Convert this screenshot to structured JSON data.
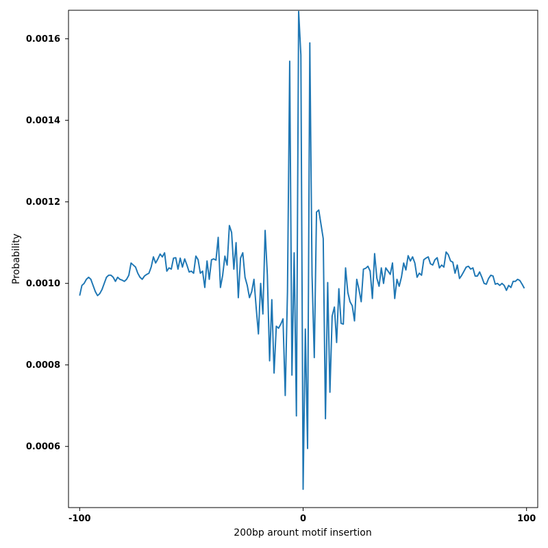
{
  "chart_data": {
    "type": "line",
    "title": "",
    "xlabel": "200bp arount motif insertion",
    "ylabel": "Probability",
    "xlim": [
      -105,
      105
    ],
    "ylim": [
      0.00045,
      0.00167
    ],
    "x_ticks": [
      -100,
      0,
      100
    ],
    "x_tick_labels": [
      "-100",
      "0",
      "100"
    ],
    "y_ticks": [
      0.0006,
      0.0008,
      0.001,
      0.0012,
      0.0014,
      0.0016
    ],
    "y_tick_labels": [
      "0.0006",
      "0.0008",
      "0.0010",
      "0.0012",
      "0.0014",
      "0.0016"
    ],
    "grid": false,
    "series": [
      {
        "color": "#1f77b4",
        "x": [
          -100,
          -99,
          -98,
          -97,
          -96,
          -95,
          -94,
          -93,
          -92,
          -91,
          -90,
          -89,
          -88,
          -87,
          -86,
          -85,
          -84,
          -83,
          -82,
          -81,
          -80,
          -79,
          -78,
          -77,
          -76,
          -75,
          -74,
          -73,
          -72,
          -71,
          -70,
          -69,
          -68,
          -67,
          -66,
          -65,
          -64,
          -63,
          -62,
          -61,
          -60,
          -59,
          -58,
          -57,
          -56,
          -55,
          -54,
          -53,
          -52,
          -51,
          -50,
          -49,
          -48,
          -47,
          -46,
          -45,
          -44,
          -43,
          -42,
          -41,
          -40,
          -39,
          -38,
          -37,
          -36,
          -35,
          -34,
          -33,
          -32,
          -31,
          -30,
          -29,
          -28,
          -27,
          -26,
          -25,
          -24,
          -23,
          -22,
          -21,
          -20,
          -19,
          -18,
          -17,
          -16,
          -15,
          -14,
          -13,
          -12,
          -11,
          -10,
          -9,
          -8,
          -7,
          -6,
          -5,
          -4,
          -3,
          -2,
          -1,
          0,
          1,
          2,
          3,
          4,
          5,
          6,
          7,
          8,
          9,
          10,
          11,
          12,
          13,
          14,
          15,
          16,
          17,
          18,
          19,
          20,
          21,
          22,
          23,
          24,
          25,
          26,
          27,
          28,
          29,
          30,
          31,
          32,
          33,
          34,
          35,
          36,
          37,
          38,
          39,
          40,
          41,
          42,
          43,
          44,
          45,
          46,
          47,
          48,
          49,
          50,
          51,
          52,
          53,
          54,
          55,
          56,
          57,
          58,
          59,
          60,
          61,
          62,
          63,
          64,
          65,
          66,
          67,
          68,
          69,
          70,
          71,
          72,
          73,
          74,
          75,
          76,
          77,
          78,
          79,
          80,
          81,
          82,
          83,
          84,
          85,
          86,
          87,
          88,
          89,
          90,
          91,
          92,
          93,
          94,
          95,
          96,
          97,
          98,
          99
        ],
        "y": [
          0.00097,
          0.000995,
          0.001,
          0.00101,
          0.001015,
          0.00101,
          0.000995,
          0.00098,
          0.00097,
          0.000975,
          0.000985,
          0.001,
          0.001015,
          0.00102,
          0.00102,
          0.001015,
          0.001005,
          0.001015,
          0.00101,
          0.001008,
          0.001005,
          0.00101,
          0.00102,
          0.00105,
          0.001045,
          0.00104,
          0.001025,
          0.001015,
          0.00101,
          0.001018,
          0.001022,
          0.001025,
          0.00104,
          0.001065,
          0.00105,
          0.00106,
          0.001072,
          0.001065,
          0.001075,
          0.00103,
          0.001038,
          0.001035,
          0.001062,
          0.001063,
          0.001035,
          0.001062,
          0.00104,
          0.00106,
          0.001045,
          0.001028,
          0.00103,
          0.001025,
          0.001067,
          0.001058,
          0.001025,
          0.00103,
          0.00099,
          0.001055,
          0.00101,
          0.001058,
          0.00106,
          0.001057,
          0.001113,
          0.00099,
          0.00102,
          0.001067,
          0.001045,
          0.001142,
          0.001125,
          0.001035,
          0.0011,
          0.000965,
          0.001062,
          0.001075,
          0.001015,
          0.000995,
          0.000965,
          0.00098,
          0.00101,
          0.00094,
          0.000876,
          0.001,
          0.000925,
          0.00113,
          0.00102,
          0.00081,
          0.00096,
          0.00078,
          0.000895,
          0.00089,
          0.0009,
          0.000913,
          0.000725,
          0.00098,
          0.001545,
          0.000775,
          0.001075,
          0.000675,
          0.001667,
          0.00156,
          0.000495,
          0.000888,
          0.000595,
          0.00159,
          0.00102,
          0.000818,
          0.001175,
          0.00118,
          0.001145,
          0.00111,
          0.000668,
          0.001002,
          0.000733,
          0.00092,
          0.000942,
          0.000855,
          0.000987,
          0.000902,
          0.0009,
          0.001038,
          0.000978,
          0.000955,
          0.000945,
          0.000908,
          0.00101,
          0.000985,
          0.000955,
          0.001035,
          0.001037,
          0.001042,
          0.00103,
          0.000963,
          0.001073,
          0.001013,
          0.000993,
          0.001038,
          0.001,
          0.001038,
          0.00103,
          0.001022,
          0.00105,
          0.000963,
          0.00101,
          0.000993,
          0.001015,
          0.00105,
          0.001033,
          0.001068,
          0.001055,
          0.001065,
          0.00105,
          0.001015,
          0.001025,
          0.00102,
          0.001058,
          0.001062,
          0.001065,
          0.001048,
          0.001045,
          0.001058,
          0.001063,
          0.001038,
          0.001045,
          0.00104,
          0.001077,
          0.00107,
          0.001055,
          0.001052,
          0.001025,
          0.001045,
          0.001012,
          0.00102,
          0.00103,
          0.00104,
          0.001042,
          0.001035,
          0.001038,
          0.001018,
          0.001018,
          0.001028,
          0.001015,
          0.001,
          0.000998,
          0.001012,
          0.00102,
          0.001018,
          0.000998,
          0.001,
          0.000995,
          0.001,
          0.000995,
          0.000983,
          0.000995,
          0.00099,
          0.001005,
          0.001005,
          0.00101,
          0.001007,
          0.000998,
          0.000988
        ]
      }
    ]
  }
}
